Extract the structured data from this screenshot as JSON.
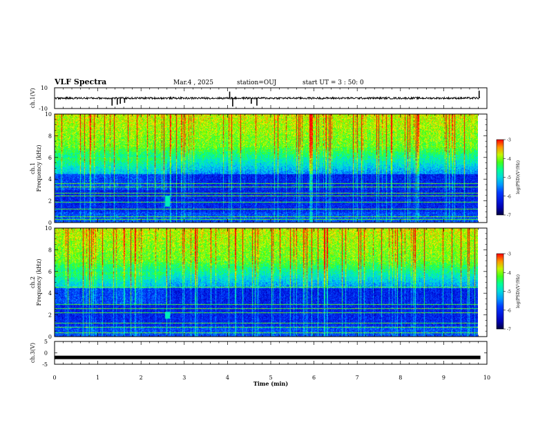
{
  "header": {
    "title": "VLF Spectra",
    "date": "Mar.4 , 2025",
    "station": "station=OUJ",
    "start": "start UT =  3 : 50: 0"
  },
  "chart_data": {
    "type": "heatmap",
    "panels": [
      {
        "id": "ch1-waveform",
        "kind": "line",
        "ylabel": "ch.1(V)",
        "y_ticks": [
          "10",
          "-10"
        ],
        "ylim": [
          -10,
          10
        ],
        "baseline": 0,
        "noise_amplitude": 1,
        "spikes": [
          {
            "t": 1.33,
            "v": -8
          },
          {
            "t": 1.45,
            "v": -7
          },
          {
            "t": 1.52,
            "v": -6
          },
          {
            "t": 1.62,
            "v": -5
          },
          {
            "t": 4.05,
            "v": 7
          },
          {
            "t": 4.12,
            "v": -9
          },
          {
            "t": 4.55,
            "v": -6
          },
          {
            "t": 4.68,
            "v": -8
          },
          {
            "t": 9.82,
            "v": 8
          }
        ]
      },
      {
        "id": "ch1-spectrogram",
        "kind": "spectrogram",
        "ylabel": "ch.1\nFrequency (kHz)",
        "ylim": [
          0,
          10
        ],
        "y_ticks": [
          "0",
          "2",
          "4",
          "6",
          "8",
          "10"
        ],
        "colorbar": {
          "label": "log(PSD)(V²/Hz)",
          "ticks": [
            "-3",
            "-4",
            "-5",
            "-6",
            "-7"
          ],
          "range": [
            -7,
            -3
          ]
        },
        "data_end_minutes": 9.8,
        "bands_khz": [
          0.3,
          0.55,
          1.3,
          1.9,
          2.5,
          2.75,
          3.3,
          3.6
        ],
        "transient": {
          "t": 2.6,
          "f_low": 1.5,
          "f_high": 2.5
        }
      },
      {
        "id": "ch2-spectrogram",
        "kind": "spectrogram",
        "ylabel": "ch.2\nFrequency (kHz)",
        "ylim": [
          0,
          10
        ],
        "y_ticks": [
          "0",
          "2",
          "4",
          "6",
          "8",
          "10"
        ],
        "colorbar": {
          "label": "log(PSD)(V²/Hz)",
          "ticks": [
            "-3",
            "-4",
            "-5",
            "-6",
            "-7"
          ],
          "range": [
            -7,
            -3
          ]
        },
        "data_end_minutes": 9.8,
        "bands_khz": [
          0.4,
          0.9,
          1.3,
          2.2,
          2.6,
          3.0,
          4.6
        ],
        "transient": {
          "t": 2.6,
          "f_low": 1.7,
          "f_high": 2.3
        }
      },
      {
        "id": "ch3-waveform",
        "kind": "line",
        "ylabel": "ch.3(V)",
        "y_ticks": [
          "5",
          "0",
          "-5"
        ],
        "ylim": [
          -5,
          5
        ],
        "constant_value": -2
      }
    ],
    "x": {
      "label": "Time  (min)",
      "range": [
        0,
        10
      ],
      "ticks": [
        "0",
        "1",
        "2",
        "3",
        "4",
        "5",
        "6",
        "7",
        "8",
        "9",
        "10"
      ]
    },
    "colors": {
      "low": "#000040",
      "mid_low": "#0000ff",
      "mid": "#00ffff",
      "mid_high": "#00ff00",
      "high_mid": "#ffff00",
      "high": "#ff0000"
    }
  }
}
